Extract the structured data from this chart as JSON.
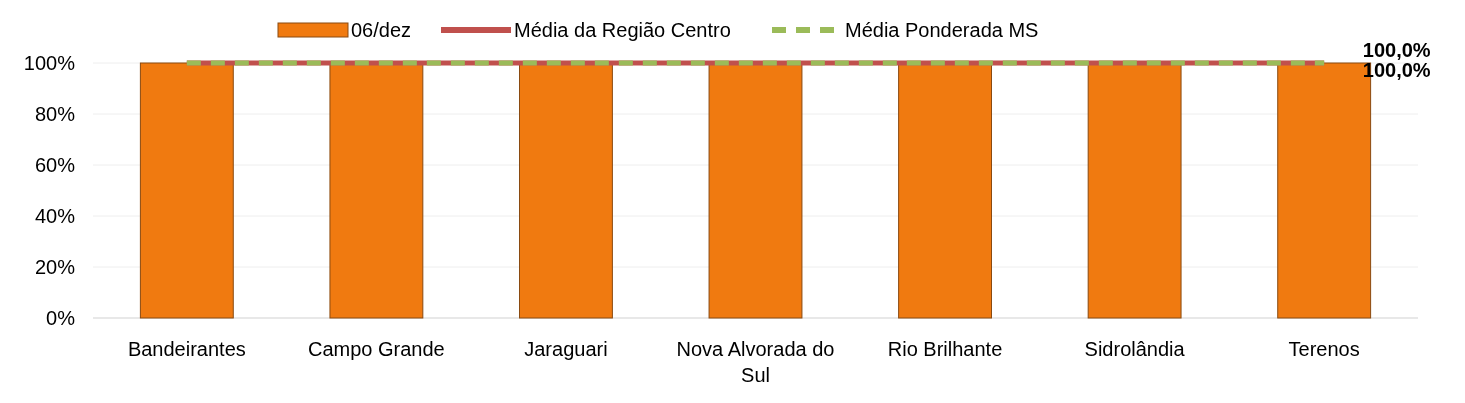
{
  "chart_data": {
    "type": "bar",
    "categories": [
      "Bandeirantes",
      "Campo Grande",
      "Jaraguari",
      "Nova Alvorada do Sul",
      "Rio Brilhante",
      "Sidrolândia",
      "Terenos"
    ],
    "series": [
      {
        "name": "06/dez",
        "color": "#f07a10",
        "values": [
          100,
          100,
          100,
          100,
          100,
          100,
          100
        ]
      },
      {
        "name": "Média da Região Centro",
        "type": "line",
        "color": "#c0504d",
        "line_style": "solid",
        "values": [
          100,
          100,
          100,
          100,
          100,
          100,
          100
        ]
      },
      {
        "name": "Média Ponderada MS",
        "type": "line",
        "color": "#9bbb59",
        "line_style": "dashed",
        "values": [
          100,
          100,
          100,
          100,
          100,
          100,
          100
        ]
      }
    ],
    "ylim": [
      0,
      100
    ],
    "yticks": [
      {
        "value": 0,
        "label": "0%"
      },
      {
        "value": 20,
        "label": "20%"
      },
      {
        "value": 40,
        "label": "40%"
      },
      {
        "value": 60,
        "label": "60%"
      },
      {
        "value": 80,
        "label": "80%"
      },
      {
        "value": 100,
        "label": "100%"
      }
    ],
    "grid": "y",
    "legend": "top",
    "annotations": [
      {
        "text": "100,0%",
        "x": "Terenos",
        "y": 100
      },
      {
        "text": "100,0%",
        "x": "Terenos",
        "y": 100
      }
    ]
  }
}
